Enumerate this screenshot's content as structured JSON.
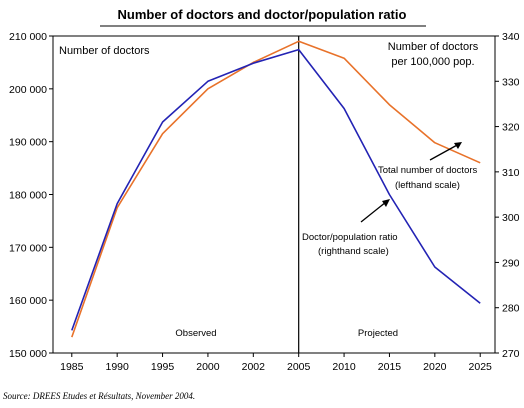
{
  "chart_data": {
    "type": "line",
    "title": "Number of doctors and doctor/population ratio",
    "x_categories": [
      "1985",
      "1990",
      "1995",
      "2000",
      "2002",
      "2005",
      "2010",
      "2015",
      "2020",
      "2025"
    ],
    "y_left": {
      "label": "Number of doctors",
      "ylim": [
        150000,
        210000
      ],
      "ticks": [
        150000,
        160000,
        170000,
        180000,
        190000,
        200000,
        210000
      ],
      "tick_labels": [
        "150 000",
        "160 000",
        "170 000",
        "180 000",
        "190 000",
        "200 000",
        "210 000"
      ]
    },
    "y_right": {
      "label_line1": "Number of doctors",
      "label_line2": "per 100,000 pop.",
      "ylim": [
        270,
        340
      ],
      "ticks": [
        270,
        280,
        290,
        300,
        310,
        320,
        330,
        340
      ],
      "tick_labels": [
        "270",
        "280",
        "290",
        "300",
        "310",
        "320",
        "330",
        "340"
      ]
    },
    "series": [
      {
        "name": "Total number of doctors (lefthand scale)",
        "axis": "left",
        "color": "#E8722A",
        "values": [
          153000,
          177500,
          191500,
          200000,
          205000,
          209000,
          205800,
          197000,
          189800,
          186000
        ]
      },
      {
        "name": "Doctor/population ratio (righthand scale)",
        "axis": "right",
        "color": "#2323B4",
        "values": [
          275,
          303,
          321,
          330,
          334,
          337,
          324,
          305,
          289,
          281
        ]
      }
    ],
    "annotations": {
      "observed": "Observed",
      "projected": "Projected",
      "orange_label_line1": "Total number of doctors",
      "orange_label_line2": "(lefthand scale)",
      "blue_label_line1": "Doctor/population ratio",
      "blue_label_line2": "(righthand scale)"
    },
    "divider_at": "2005",
    "grid": false,
    "source": "Source: DREES Etudes et Résultats, November 2004."
  }
}
